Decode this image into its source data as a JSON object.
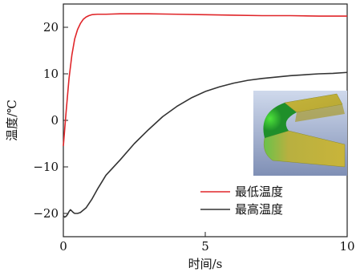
{
  "chart_data": {
    "type": "line",
    "xlabel": "时间/s",
    "ylabel": "温度/℃",
    "xlim": [
      0,
      10
    ],
    "ylim": [
      -25,
      25
    ],
    "xticks": [
      0,
      5,
      10
    ],
    "yticks": [
      -20,
      -10,
      0,
      10,
      20
    ],
    "grid": false,
    "legend_position": "bottom-right",
    "inset_image": "green-yellow 3d curved panel rendering",
    "series": [
      {
        "name": "最低温度",
        "color": "#e0262a",
        "points": [
          [
            0,
            -5.5
          ],
          [
            0.1,
            2
          ],
          [
            0.2,
            9
          ],
          [
            0.3,
            14
          ],
          [
            0.4,
            17.5
          ],
          [
            0.5,
            19.5
          ],
          [
            0.6,
            20.8
          ],
          [
            0.7,
            21.7
          ],
          [
            0.8,
            22.2
          ],
          [
            0.9,
            22.5
          ],
          [
            1.0,
            22.7
          ],
          [
            1.2,
            22.8
          ],
          [
            1.5,
            22.8
          ],
          [
            2.0,
            22.9
          ],
          [
            3.0,
            22.9
          ],
          [
            4.0,
            22.8
          ],
          [
            5.0,
            22.7
          ],
          [
            6.0,
            22.6
          ],
          [
            7.0,
            22.5
          ],
          [
            8.0,
            22.5
          ],
          [
            9.0,
            22.4
          ],
          [
            10.0,
            22.4
          ]
        ]
      },
      {
        "name": "最高温度",
        "color": "#333333",
        "points": [
          [
            0,
            -20.5
          ],
          [
            0.05,
            -20.8
          ],
          [
            0.1,
            -20.6
          ],
          [
            0.15,
            -20.2
          ],
          [
            0.2,
            -19.6
          ],
          [
            0.25,
            -19.2
          ],
          [
            0.3,
            -19.5
          ],
          [
            0.35,
            -19.8
          ],
          [
            0.4,
            -20.0
          ],
          [
            0.5,
            -20.0
          ],
          [
            0.6,
            -19.8
          ],
          [
            0.8,
            -18.8
          ],
          [
            1.0,
            -17.0
          ],
          [
            1.2,
            -14.8
          ],
          [
            1.5,
            -11.8
          ],
          [
            2.0,
            -8.5
          ],
          [
            2.5,
            -5.0
          ],
          [
            3.0,
            -2.0
          ],
          [
            3.5,
            0.8
          ],
          [
            4.0,
            3.0
          ],
          [
            4.5,
            4.8
          ],
          [
            5.0,
            6.2
          ],
          [
            5.5,
            7.2
          ],
          [
            6.0,
            8.0
          ],
          [
            6.5,
            8.6
          ],
          [
            7.0,
            9.0
          ],
          [
            7.5,
            9.3
          ],
          [
            8.0,
            9.6
          ],
          [
            8.5,
            9.8
          ],
          [
            9.0,
            10.0
          ],
          [
            9.5,
            10.1
          ],
          [
            10.0,
            10.3
          ]
        ]
      }
    ]
  }
}
